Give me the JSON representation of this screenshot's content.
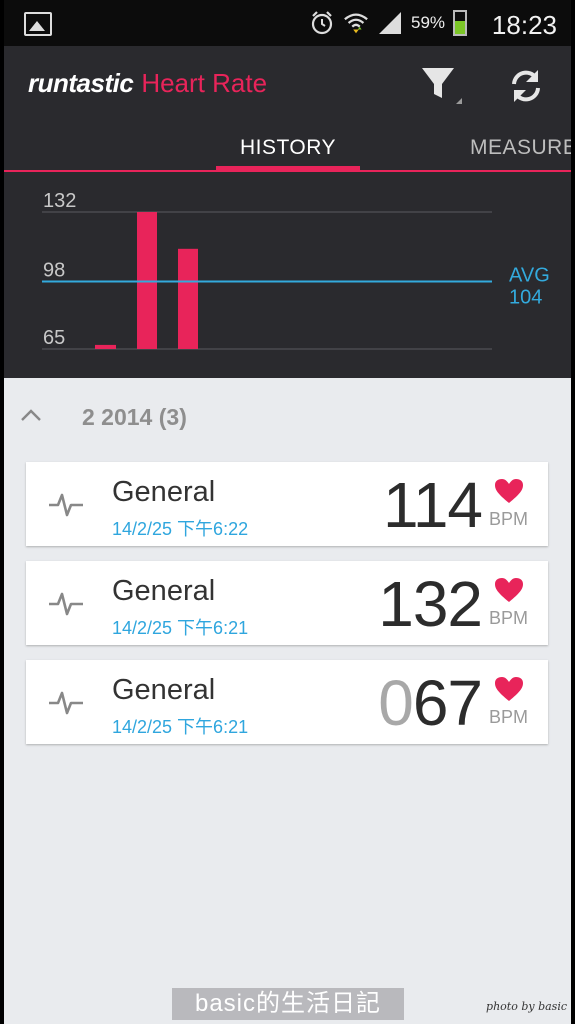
{
  "statusbar": {
    "battery_pct": "59%",
    "battery_level": 0.59,
    "time": "18:23",
    "icons": [
      "gallery-icon",
      "alarm-icon",
      "wifi-icon",
      "signal-icon",
      "battery-icon"
    ]
  },
  "appbar": {
    "logo_text": "runtastic",
    "app_name": "Heart Rate",
    "icons": [
      "filter-icon",
      "refresh-icon"
    ]
  },
  "tabs": [
    {
      "label": "HISTORY",
      "active": true
    },
    {
      "label": "MEASURE",
      "active": false
    }
  ],
  "chart_data": {
    "type": "bar",
    "categories": [
      "",
      "",
      ""
    ],
    "values": [
      67,
      132,
      114
    ],
    "ylim": [
      65,
      132
    ],
    "yticks": [
      "132",
      "98",
      "65"
    ],
    "average_label": "AVG",
    "average_value": "104",
    "average_line_at": 98,
    "grid": true,
    "bar_color": "#e8245a",
    "avg_color": "#33aadd"
  },
  "list": {
    "group_title": "2 2014 (3)",
    "items": [
      {
        "name": "General",
        "date": "14/2/25 下午6:22",
        "value_dim": "",
        "value_main": "114",
        "unit": "BPM"
      },
      {
        "name": "General",
        "date": "14/2/25 下午6:21",
        "value_dim": "",
        "value_main": "132",
        "unit": "BPM"
      },
      {
        "name": "General",
        "date": "14/2/25 下午6:21",
        "value_dim": "0",
        "value_main": "67",
        "unit": "BPM"
      }
    ]
  },
  "watermark": "basic的生活日記",
  "credit": "photo by basic",
  "colors": {
    "accent": "#e8245a",
    "link_blue": "#2fa6de",
    "header_bg": "#2a2a2e"
  }
}
